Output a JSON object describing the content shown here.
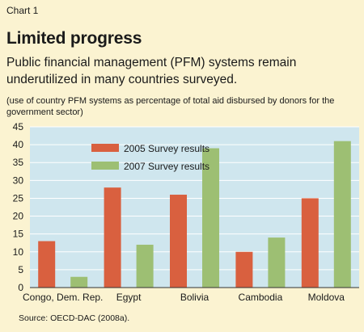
{
  "header": {
    "label": "Chart 1",
    "title": "Limited progress",
    "subtitle": "Public financial management (PFM) systems remain underutilized in many countries surveyed.",
    "note": "(use of country PFM systems as percentage of total aid disbursed by donors for the government sector)"
  },
  "source": "Source: OECD-DAC (2008a).",
  "colors": {
    "background": "#fbf3d1",
    "plot_area": "#cfe6ee",
    "series_2005": "#d9603f",
    "series_2007": "#9dbf73"
  },
  "chart_data": {
    "type": "bar",
    "categories": [
      "Congo, Dem. Rep.",
      "Egypt",
      "Bolivia",
      "Cambodia",
      "Moldova"
    ],
    "series": [
      {
        "name": "2005 Survey results",
        "values": [
          13,
          28,
          26,
          10,
          25
        ]
      },
      {
        "name": "2007 Survey results",
        "values": [
          3,
          12,
          39,
          14,
          41
        ]
      }
    ],
    "ylim": [
      0,
      45
    ],
    "yticks": [
      0,
      5,
      10,
      15,
      20,
      25,
      30,
      35,
      40,
      45
    ],
    "grid": true,
    "legend": "top-left"
  }
}
